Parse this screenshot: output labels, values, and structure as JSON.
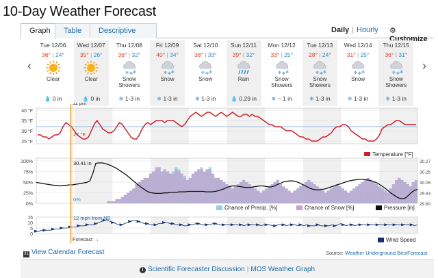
{
  "title": "10-Day Weather Forecast",
  "tabs": {
    "graph": "Graph",
    "table": "Table",
    "descriptive": "Descriptive"
  },
  "modes": {
    "daily": "Daily",
    "separator": "|",
    "hourly": "Hourly",
    "customize": "Customize"
  },
  "days": [
    {
      "date": "Tue 12/06",
      "hi": "36°",
      "lo": "24°",
      "icon": "sun-icon",
      "cond": "Clear",
      "precip": "0 in",
      "precip_icon": "drop"
    },
    {
      "date": "Wed 12/07",
      "hi": "35°",
      "lo": "26°",
      "icon": "sun-icon",
      "cond": "Clear",
      "precip": "0 in",
      "precip_icon": "drop"
    },
    {
      "date": "Thu 12/08",
      "hi": "36°",
      "lo": "32°",
      "icon": "snow-cloud-icon",
      "cond": "Snow Showers",
      "precip": "1-3 in",
      "precip_icon": "flake"
    },
    {
      "date": "Fri 12/09",
      "hi": "40°",
      "lo": "34°",
      "icon": "snow-cloud-icon",
      "cond": "Snow",
      "precip": "1-3 in",
      "precip_icon": "flake"
    },
    {
      "date": "Sat 12/10",
      "hi": "38°",
      "lo": "33°",
      "icon": "snow-cloud-icon",
      "cond": "Snow",
      "precip": "1-3 in",
      "precip_icon": "flake"
    },
    {
      "date": "Sun 12/11",
      "hi": "39°",
      "lo": "32°",
      "icon": "rain-cloud-icon",
      "cond": "Rain",
      "precip": "0.29 in",
      "precip_icon": "rain"
    },
    {
      "date": "Mon 12/12",
      "hi": "33°",
      "lo": "25°",
      "icon": "snow-cloud-icon",
      "cond": "Snow Showers",
      "precip": "~ 1 in",
      "precip_icon": "flake"
    },
    {
      "date": "Tue 12/13",
      "hi": "28°",
      "lo": "24°",
      "icon": "snow-cloud-icon",
      "cond": "Snow Showers",
      "precip": "1-3 in",
      "precip_icon": "flake"
    },
    {
      "date": "Wed 12/14",
      "hi": "31°",
      "lo": "25°",
      "icon": "snow-cloud-icon",
      "cond": "Snow",
      "precip": "1-3 in",
      "precip_icon": "flake"
    },
    {
      "date": "Thu 12/15",
      "hi": "36°",
      "lo": "31°",
      "icon": "snow-cloud-icon",
      "cond": "Snow Showers",
      "precip": "1-3 in",
      "precip_icon": "flake"
    }
  ],
  "colors": {
    "temp": "#cc1f2a",
    "precip": "#8fd0e6",
    "snow": "#c3a3cc",
    "pressure": "#111111",
    "wind": "#14316e",
    "now_line": "#f2a33a",
    "link": "#1a6aa8",
    "hi": "#d8452a",
    "lo": "#2a8fc9"
  },
  "chart_data": [
    {
      "type": "line",
      "title": "Temperature [°F]",
      "yticks": [
        "40 °F",
        "35 °F",
        "30 °F",
        "25 °F"
      ],
      "ylim": [
        25,
        40
      ],
      "x_labels": {
        "now": "11 pm"
      },
      "annotation": "27 °F",
      "series": [
        {
          "name": "Temperature [°F]",
          "values": [
            28,
            28,
            27,
            27,
            26,
            27,
            28,
            28,
            29,
            32,
            34,
            33,
            32,
            30,
            28,
            27,
            26,
            26,
            27,
            30,
            33,
            35,
            33,
            31,
            30,
            29,
            29,
            30,
            32,
            34,
            33,
            31,
            29,
            27,
            26,
            26,
            28,
            31,
            33,
            34,
            33,
            34,
            35,
            35,
            35,
            34,
            35,
            35,
            35,
            34,
            33,
            32,
            33,
            35,
            37,
            38,
            39,
            38,
            37,
            38,
            39,
            39,
            38,
            37,
            38,
            39,
            38,
            37,
            38,
            39,
            38,
            37,
            37,
            38,
            38,
            37,
            38,
            37,
            37,
            36,
            35,
            34,
            33,
            33,
            32,
            32,
            32,
            31,
            30,
            30,
            30,
            29,
            28,
            27,
            27,
            26,
            26,
            25,
            25,
            25,
            26,
            27,
            27,
            28,
            29,
            31,
            32,
            32,
            33,
            33,
            32,
            30,
            29,
            28,
            27,
            26,
            26,
            25,
            25,
            25,
            26,
            28,
            31,
            32,
            33,
            33,
            34,
            35,
            35,
            34,
            33,
            33,
            33,
            33,
            33
          ]
        }
      ]
    },
    {
      "type": "area",
      "title": "Precipitation / Pressure",
      "yticks": [
        "100%",
        "75%",
        "50%",
        "25%",
        "0%"
      ],
      "yticks_right": [
        "30.25",
        "30.05",
        "29.83",
        "29.60",
        "30.27"
      ],
      "ylim": [
        0,
        100
      ],
      "annotations": [
        "30.41 in",
        "0%"
      ],
      "series": [
        {
          "name": "Chance of Precip. [%]",
          "values": [
            0,
            0,
            0,
            0,
            0,
            0,
            0,
            0,
            0,
            0,
            0,
            0,
            0,
            0,
            0,
            0,
            0,
            0,
            0,
            0,
            0,
            0,
            0,
            0,
            0,
            5,
            5,
            5,
            10,
            10,
            15,
            20,
            25,
            30,
            35,
            45,
            50,
            55,
            60,
            60,
            70,
            75,
            80,
            85,
            75,
            80,
            75,
            70,
            75,
            85,
            80,
            70,
            65,
            55,
            60,
            70,
            75,
            80,
            85,
            75,
            80,
            85,
            70,
            60,
            60,
            55,
            50,
            45,
            40,
            35,
            40,
            45,
            50,
            55,
            50,
            45,
            40,
            35,
            30,
            25,
            30,
            35,
            40,
            45,
            50,
            55,
            45,
            40,
            35,
            30,
            25,
            30,
            35,
            40,
            45,
            50,
            55,
            50,
            45,
            40,
            35,
            30,
            25,
            30,
            35,
            40,
            45,
            40,
            35,
            30,
            25,
            30,
            35,
            40,
            45,
            50,
            55,
            60,
            55,
            50,
            45,
            40,
            35,
            30,
            25,
            35,
            45,
            55,
            60,
            55,
            50,
            45,
            40,
            50,
            55
          ]
        },
        {
          "name": "Chance of Snow [%]",
          "values": [
            0,
            0,
            0,
            0,
            0,
            0,
            0,
            0,
            0,
            0,
            0,
            0,
            0,
            0,
            0,
            0,
            0,
            0,
            0,
            0,
            0,
            0,
            0,
            0,
            0,
            5,
            5,
            5,
            10,
            10,
            15,
            20,
            25,
            30,
            35,
            45,
            50,
            55,
            60,
            60,
            70,
            75,
            85,
            85,
            75,
            80,
            75,
            70,
            70,
            80,
            75,
            70,
            60,
            55,
            60,
            70,
            75,
            80,
            80,
            75,
            80,
            80,
            70,
            60,
            60,
            55,
            50,
            45,
            40,
            35,
            40,
            45,
            50,
            55,
            50,
            45,
            40,
            35,
            30,
            25,
            30,
            35,
            40,
            45,
            50,
            55,
            45,
            40,
            35,
            30,
            25,
            30,
            35,
            40,
            45,
            50,
            55,
            50,
            45,
            40,
            35,
            30,
            25,
            30,
            35,
            40,
            45,
            40,
            35,
            30,
            25,
            30,
            35,
            40,
            45,
            50,
            55,
            60,
            55,
            50,
            45,
            40,
            35,
            30,
            25,
            35,
            45,
            55,
            60,
            55,
            50,
            45,
            40,
            50,
            55
          ]
        },
        {
          "name": "Pressure [in]",
          "values": [
            30.02,
            30.01,
            30.0,
            29.99,
            29.98,
            29.97,
            29.96,
            29.96,
            29.95,
            29.96,
            29.96,
            29.97,
            29.97,
            29.98,
            29.99,
            30.0,
            30.01,
            30.02,
            30.05,
            30.2,
            30.4,
            30.41,
            30.41,
            30.4,
            30.38,
            30.36,
            30.33,
            30.3,
            30.26,
            30.22,
            30.18,
            30.13,
            30.08,
            30.03,
            29.98,
            29.93,
            29.89,
            29.85,
            29.82,
            29.81,
            29.8,
            29.8,
            29.8,
            29.81,
            29.81,
            29.82,
            29.82,
            29.82,
            29.83,
            29.83,
            29.83,
            29.84,
            29.84,
            29.84,
            29.84,
            29.84,
            29.84,
            29.83,
            29.83,
            29.83,
            29.84,
            29.85,
            29.87,
            29.89,
            29.92,
            29.94,
            29.95,
            29.95,
            29.94,
            29.93,
            29.92,
            29.92,
            29.92,
            29.93,
            29.94,
            29.95,
            29.95,
            29.94,
            29.93,
            29.93,
            29.95,
            29.98,
            30.0,
            30.03,
            30.04,
            30.05,
            30.05,
            30.04,
            30.02,
            29.99,
            29.96,
            29.93,
            29.9,
            29.88,
            29.87,
            29.87,
            29.88,
            29.89,
            29.91,
            29.93,
            29.95,
            29.97,
            29.99,
            30.01,
            30.03,
            30.05,
            30.06,
            30.07,
            30.08,
            30.08,
            30.08,
            30.07,
            30.06,
            30.04,
            30.02,
            29.99,
            29.95,
            29.91,
            29.86,
            29.81,
            29.77,
            29.73,
            29.7,
            29.69,
            29.71,
            29.76,
            29.82,
            29.86,
            29.88
          ]
        }
      ]
    },
    {
      "type": "line",
      "title": "Wind Speed",
      "yticks": [
        "15",
        "10",
        "5",
        "0"
      ],
      "ylim": [
        0,
        15
      ],
      "annotations": [
        "12 mph from NE",
        "Forecast →"
      ],
      "series": [
        {
          "name": "Wind Speed",
          "values": [
            2,
            2,
            3,
            3,
            3,
            3,
            4,
            4,
            4,
            5,
            5,
            5,
            6,
            6,
            6,
            7,
            7,
            7,
            8,
            8,
            8,
            9,
            10,
            11,
            12,
            12,
            11,
            10,
            9,
            8,
            8,
            9,
            10,
            11,
            12,
            12,
            11,
            10,
            9,
            9,
            8,
            8,
            8,
            9,
            9,
            10,
            10,
            9,
            9,
            8,
            8,
            8,
            7,
            7,
            8,
            8,
            9,
            9,
            8,
            8,
            8,
            8,
            9,
            9,
            8,
            8,
            8,
            8,
            8,
            8,
            8,
            8,
            8,
            7,
            8,
            8,
            8,
            8,
            8,
            7,
            8,
            8,
            8,
            7,
            7,
            8,
            8,
            8,
            7,
            8,
            8,
            8,
            7,
            8,
            7,
            8,
            7,
            7,
            7,
            8,
            7,
            7,
            7,
            7,
            8,
            7,
            8,
            9,
            8,
            7,
            8,
            8,
            7,
            8,
            8,
            8,
            8,
            8,
            8,
            8,
            8,
            8,
            8,
            8,
            8,
            8,
            8,
            8,
            8,
            8,
            8,
            8,
            8,
            7,
            8
          ]
        }
      ]
    }
  ],
  "legends": {
    "temp": "Temperature [°F]",
    "precip": "Chance of Precip. [%]",
    "snow": "Chance of Snow [%]",
    "pressure": "Pressure [in]",
    "wind": "Wind Speed"
  },
  "footer": {
    "calendar_link": "View Calendar Forecast",
    "source_label": "Source:",
    "source_link": "Weather Underground BestForecast",
    "discussion_link": "Scientific Forecaster Discussion",
    "separator": "|",
    "mos_link": "MOS Weather Graph"
  }
}
